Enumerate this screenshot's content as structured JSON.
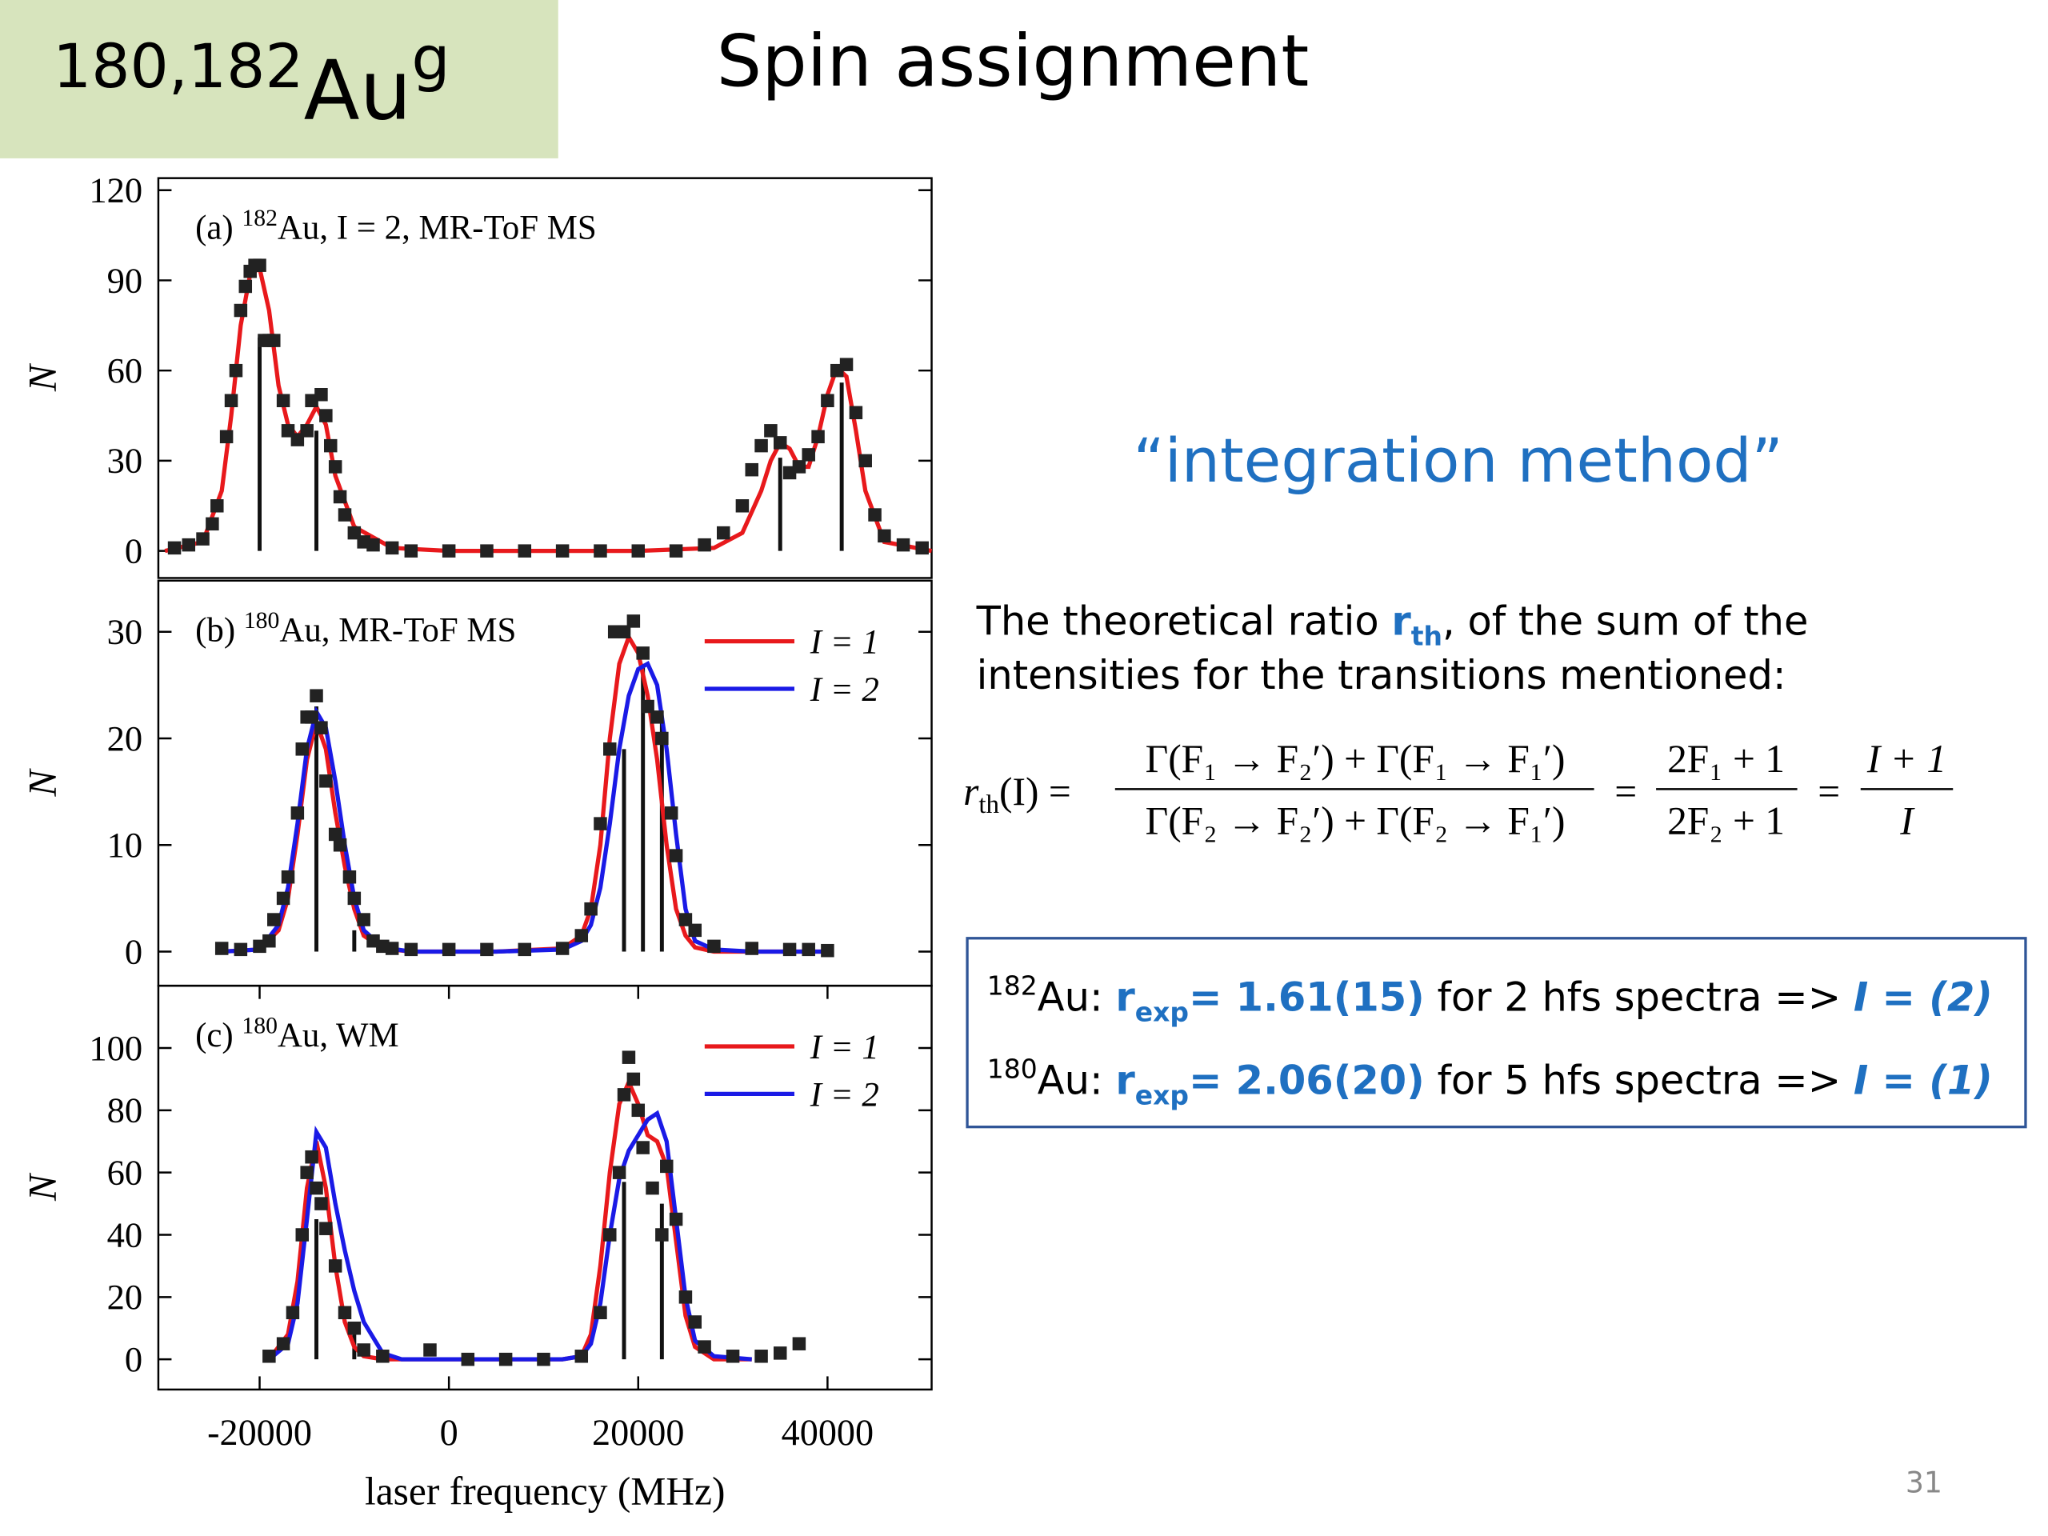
{
  "header": {
    "mass": "180,182",
    "element": "Au",
    "state": "g",
    "title": "Spin assignment"
  },
  "method": "“integration method”",
  "paragraph": {
    "line1": [
      "The theoretical ratio ",
      "r",
      "th",
      ", of the sum of the"
    ],
    "line2": "intensities for the transitions mentioned:"
  },
  "formula": {
    "lhs_r": "r",
    "lhs_sub": "th",
    "lhs_rest": "(I) =",
    "eq": "=",
    "frac1_num": "Γ(F₁ → F₂′) + Γ(F₁ → F₁′)",
    "frac1_den": "Γ(F₂ → F₂′) + Γ(F₂ → F₁′)",
    "frac2_num": "2F₁ + 1",
    "frac2_den": "2F₂ + 1",
    "frac3_num": "I + 1",
    "frac3_den": "I"
  },
  "results": [
    [
      "182",
      "Au: ",
      "r",
      "exp",
      "= 1.61(15)",
      " for 2 hfs spectra => ",
      "I = (2)"
    ],
    [
      "180",
      "Au: ",
      "r",
      "exp",
      "= 2.06(20)",
      " for 5 hfs spectra => ",
      "I = (1)"
    ]
  ],
  "page_number": "31",
  "chart_data": [
    {
      "type": "spectrum",
      "label": [
        "(a) ",
        "182",
        "Au, I = 2, MR-ToF MS"
      ],
      "ylabel": "N",
      "xlim": [
        -30700,
        51000
      ],
      "ylim": [
        -9,
        124
      ],
      "yticks": [
        0,
        30,
        60,
        90,
        120
      ],
      "series": [
        {
          "kind": "sticks",
          "color": "#111111",
          "x": [
            -20000,
            -14000,
            35000,
            41500
          ],
          "values": [
            71,
            40,
            31,
            56
          ]
        },
        {
          "kind": "line",
          "color": "#e8191c",
          "x": [
            -30000,
            -26000,
            -24000,
            -23000,
            -22000,
            -21000,
            -20000,
            -19000,
            -18000,
            -17000,
            -16000,
            -15000,
            -14000,
            -13000,
            -12000,
            -10000,
            -6000,
            0,
            20000,
            28000,
            31000,
            33000,
            34000,
            35000,
            36000,
            37000,
            38000,
            39000,
            40000,
            41000,
            42000,
            43000,
            44000,
            46000,
            51000
          ],
          "values": [
            0,
            3,
            20,
            45,
            75,
            92,
            94,
            80,
            55,
            42,
            38,
            42,
            48,
            42,
            25,
            8,
            1,
            0,
            0,
            1,
            6,
            20,
            30,
            36,
            34,
            28,
            28,
            38,
            52,
            61,
            58,
            40,
            20,
            3,
            0
          ]
        },
        {
          "kind": "points",
          "color": "#222222",
          "x": [
            -29000,
            -27500,
            -26000,
            -25000,
            -24500,
            -23500,
            -23000,
            -22500,
            -22000,
            -21500,
            -21000,
            -20500,
            -20000,
            -19500,
            -19000,
            -18500,
            -17500,
            -17000,
            -16000,
            -15000,
            -14500,
            -13500,
            -13000,
            -12500,
            -12000,
            -11500,
            -11000,
            -10000,
            -9000,
            -8000,
            -6000,
            -4000,
            0,
            4000,
            8000,
            12000,
            16000,
            20000,
            24000,
            27000,
            29000,
            31000,
            32000,
            33000,
            34000,
            35000,
            36000,
            37000,
            38000,
            39000,
            40000,
            41000,
            42000,
            43000,
            44000,
            45000,
            46000,
            48000,
            50000
          ],
          "values": [
            1,
            2,
            4,
            9,
            15,
            38,
            50,
            60,
            80,
            88,
            93,
            95,
            95,
            70,
            70,
            70,
            50,
            40,
            37,
            40,
            50,
            52,
            45,
            35,
            28,
            18,
            12,
            6,
            3,
            2,
            1,
            0,
            0,
            0,
            0,
            0,
            0,
            0,
            0,
            2,
            6,
            15,
            27,
            35,
            40,
            36,
            26,
            28,
            32,
            38,
            50,
            60,
            62,
            46,
            30,
            12,
            5,
            2,
            1
          ]
        }
      ]
    },
    {
      "type": "spectrum",
      "label": [
        "(b) ",
        "180",
        "Au, MR-ToF MS"
      ],
      "ylabel": "N",
      "legend": "upper right",
      "xlim": [
        -30700,
        51000
      ],
      "ylim": [
        -3.2,
        34.8
      ],
      "yticks": [
        0,
        10,
        20,
        30
      ],
      "series": [
        {
          "kind": "sticks",
          "color": "#111111",
          "x": [
            -14000,
            -10000,
            18500,
            20500,
            22500
          ],
          "values": [
            23,
            2,
            19,
            27,
            22
          ]
        },
        {
          "kind": "line",
          "name": "I = 1",
          "color": "#e8191c",
          "x": [
            -24000,
            -20000,
            -18000,
            -17000,
            -16000,
            -15000,
            -14000,
            -13000,
            -12000,
            -11000,
            -10000,
            -9000,
            -7000,
            -4000,
            5000,
            12000,
            14000,
            15000,
            16000,
            17000,
            18000,
            19000,
            20000,
            21000,
            22000,
            23000,
            24000,
            25000,
            26000,
            28000,
            32000,
            40000
          ],
          "values": [
            0,
            0.2,
            2,
            5,
            11,
            18,
            21.5,
            19,
            13,
            8,
            4,
            1.5,
            0.3,
            0,
            0,
            0.3,
            1.5,
            4,
            10,
            20,
            27,
            29.5,
            28,
            24,
            18,
            10,
            4,
            1.5,
            0.4,
            0,
            0,
            0
          ]
        },
        {
          "kind": "line",
          "name": "I = 2",
          "color": "#1a1ae6",
          "x": [
            -24000,
            -20000,
            -18000,
            -17000,
            -16000,
            -15000,
            -14000,
            -13000,
            -12000,
            -11000,
            -10000,
            -9000,
            -7000,
            -4000,
            5000,
            12000,
            14000,
            15000,
            16000,
            17000,
            18000,
            19000,
            20000,
            21000,
            22000,
            23000,
            24000,
            25000,
            26000,
            28000,
            32000,
            40000
          ],
          "values": [
            0,
            0.2,
            2.5,
            6,
            12,
            19,
            22.5,
            21,
            16,
            10,
            5,
            2,
            0.4,
            0,
            0,
            0.2,
            1,
            2.5,
            6,
            12,
            19,
            24,
            26.5,
            27,
            25,
            19,
            11,
            4,
            1,
            0.2,
            0,
            0
          ]
        },
        {
          "kind": "points",
          "color": "#222222",
          "x": [
            -24000,
            -22000,
            -20000,
            -19000,
            -18500,
            -17500,
            -17000,
            -16000,
            -15500,
            -15000,
            -14500,
            -14000,
            -13500,
            -13000,
            -12000,
            -11500,
            -10500,
            -10000,
            -9000,
            -8000,
            -7000,
            -6000,
            -4000,
            0,
            4000,
            8000,
            12000,
            14000,
            15000,
            16000,
            17000,
            17500,
            18500,
            19500,
            20500,
            21000,
            22000,
            22500,
            23500,
            24000,
            25000,
            26000,
            28000,
            32000,
            36000,
            38000,
            40000
          ],
          "values": [
            0.3,
            0.2,
            0.5,
            1,
            3,
            5,
            7,
            13,
            19,
            22,
            22,
            24,
            21,
            16,
            11,
            10,
            7,
            5,
            3,
            1,
            0.5,
            0.3,
            0.2,
            0.2,
            0.2,
            0.2,
            0.3,
            1.5,
            4,
            12,
            19,
            30,
            30,
            31,
            28,
            23,
            22,
            20,
            13,
            9,
            3,
            2,
            0.5,
            0.3,
            0.2,
            0.2,
            0.1
          ]
        }
      ]
    },
    {
      "type": "spectrum",
      "label": [
        "(c) ",
        "180",
        "Au, WM"
      ],
      "ylabel": "N",
      "xlabel": "laser frequency (MHz)",
      "legend": "upper right",
      "xlim": [
        -30700,
        51000
      ],
      "ylim": [
        -9.7,
        120
      ],
      "yticks": [
        0,
        20,
        40,
        60,
        80,
        100
      ],
      "xticks": [
        -20000,
        0,
        20000,
        40000
      ],
      "series": [
        {
          "kind": "sticks",
          "color": "#111111",
          "x": [
            -14000,
            -10000,
            18500,
            22500
          ],
          "values": [
            45,
            10,
            57,
            50
          ]
        },
        {
          "kind": "line",
          "name": "I = 1",
          "color": "#e8191c",
          "x": [
            -19000,
            -17000,
            -16000,
            -15000,
            -14000,
            -13000,
            -12000,
            -11000,
            -10000,
            -9000,
            -7000,
            -5000,
            0,
            12000,
            14000,
            15000,
            16000,
            17000,
            18000,
            19000,
            20000,
            21000,
            22000,
            23000,
            24000,
            25000,
            26000,
            28000,
            32000
          ],
          "values": [
            0,
            8,
            25,
            55,
            70,
            55,
            30,
            12,
            4,
            1,
            0,
            0,
            0,
            0,
            1,
            8,
            30,
            60,
            82,
            89,
            82,
            72,
            70,
            62,
            38,
            14,
            4,
            0,
            0
          ]
        },
        {
          "kind": "line",
          "name": "I = 2",
          "color": "#1a1ae6",
          "x": [
            -19000,
            -17000,
            -16000,
            -15000,
            -14000,
            -13000,
            -12000,
            -11000,
            -10000,
            -9000,
            -7000,
            -5000,
            0,
            12000,
            14000,
            15000,
            16000,
            17000,
            18000,
            19000,
            20000,
            21000,
            22000,
            23000,
            24000,
            25000,
            26000,
            28000,
            32000
          ],
          "values": [
            0,
            5,
            18,
            45,
            73,
            68,
            50,
            35,
            22,
            12,
            2,
            0,
            0,
            0,
            1,
            5,
            18,
            40,
            58,
            67,
            72,
            77,
            79,
            70,
            45,
            20,
            6,
            1,
            0
          ]
        },
        {
          "kind": "points",
          "color": "#222222",
          "x": [
            -19000,
            -17500,
            -16500,
            -15500,
            -15000,
            -14500,
            -14000,
            -13500,
            -13000,
            -12000,
            -11000,
            -10000,
            -9000,
            -7000,
            -2000,
            2000,
            6000,
            10000,
            14000,
            16000,
            17000,
            18000,
            18500,
            19000,
            19500,
            20000,
            20500,
            21500,
            22500,
            23000,
            24000,
            25000,
            26000,
            27000,
            30000,
            33000,
            35000,
            37000
          ],
          "values": [
            1,
            5,
            15,
            40,
            60,
            65,
            55,
            50,
            42,
            30,
            15,
            10,
            3,
            1,
            3,
            0,
            0,
            0,
            1,
            15,
            40,
            60,
            85,
            97,
            90,
            80,
            68,
            55,
            40,
            62,
            45,
            20,
            12,
            4,
            1,
            1,
            2,
            5
          ]
        }
      ]
    }
  ]
}
